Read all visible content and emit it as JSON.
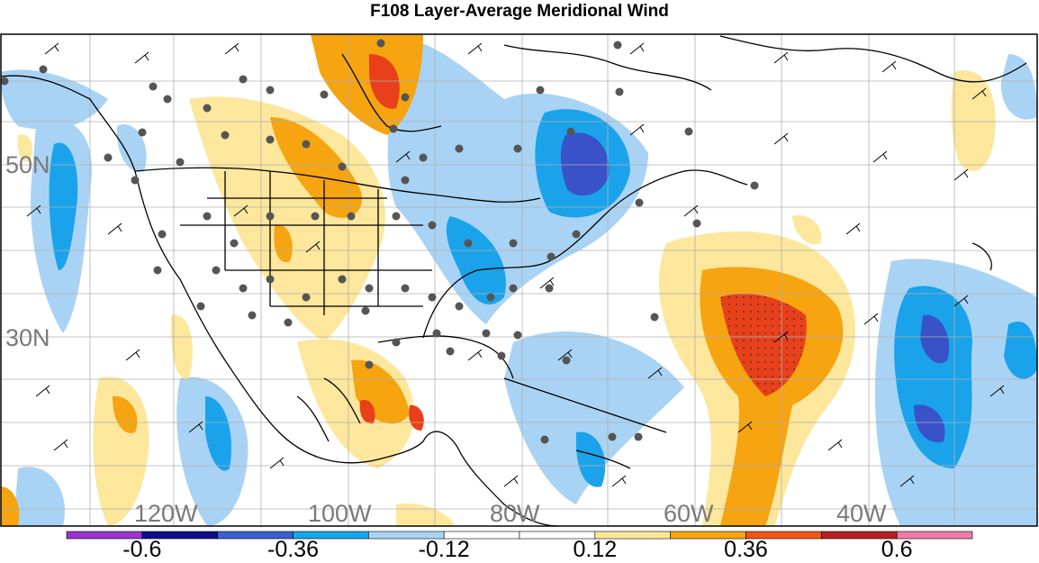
{
  "title": "F108 Layer-Average Meridional Wind",
  "lat_labels": [
    "50N",
    "30N"
  ],
  "lon_labels": [
    "120W",
    "100W",
    "80W",
    "60W",
    "40W"
  ],
  "colorbar": {
    "colors": [
      "#9a35d0",
      "#0d0d8a",
      "#3b5fcf",
      "#16a6ea",
      "#a8d4f5",
      "#ffffff",
      "#ffffff",
      "#fbe89a",
      "#f7a40f",
      "#f05518",
      "#b52222",
      "#ee7cab"
    ],
    "tick_labels": [
      "-0.6",
      "-0.36",
      "-0.12",
      "0.12",
      "0.36",
      "0.6"
    ]
  },
  "colors": {
    "strong_positive": "#e8401a",
    "positive": "#f6a40f",
    "weak_positive": "#fce79c",
    "weak_negative": "#a9d3f4",
    "negative": "#1aa3ea",
    "strong_negative": "#3952c8",
    "gridline": "#b0b0b0",
    "coast": "#000000",
    "station_dot": "#555555"
  }
}
